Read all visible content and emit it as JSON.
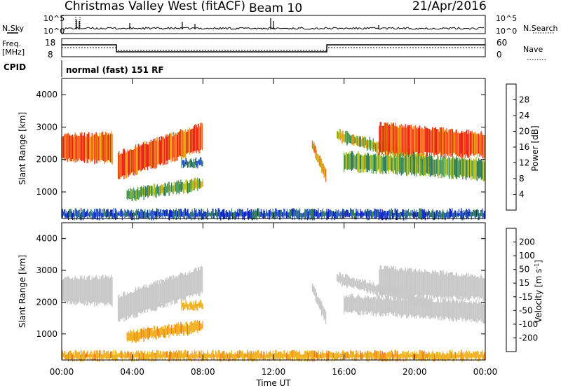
{
  "header": {
    "station": "Christmas Valley West (fitACF)",
    "beam": "Beam 10",
    "date": "21/Apr/2016"
  },
  "summary": {
    "nsky_label": "N.Sky",
    "nsearch_label": "N.Search",
    "count_ticks": [
      "10^5",
      "10^0"
    ],
    "freq_label": [
      "Freq.",
      "[MHz]"
    ],
    "freq_ticks": [
      "18",
      "8"
    ],
    "nave_label": "Nave",
    "nave_ticks": [
      "60",
      "0"
    ],
    "cpid_label": "CPID",
    "cpid_text": "normal (fast) 151 RF"
  },
  "colors": {
    "power": [
      "#0a1ec8",
      "#2454c8",
      "#2f7a5c",
      "#4ea050",
      "#b8c020",
      "#f0a010",
      "#f06418",
      "#ee2014"
    ],
    "velocity": [
      "#2046c0",
      "#2e6a52",
      "#46a046",
      "#8ad040",
      "#c8c8c8",
      "#f0b020",
      "#f07a10",
      "#ee4a10",
      "#e01010"
    ]
  },
  "chart_data": [
    {
      "type": "heatmap",
      "quantity": "Power",
      "ylabel": "Slant Range [km]",
      "xlabel": "Time UT",
      "x_ticks": [
        "00:00",
        "04:00",
        "08:00",
        "12:00",
        "16:00",
        "20:00",
        "00:00"
      ],
      "x_range_hours": [
        0,
        24
      ],
      "y_ticks": [
        1000,
        2000,
        3000,
        4000
      ],
      "y_range_km": [
        180,
        4500
      ],
      "colorbar": {
        "label": "Power [dB]",
        "ticks": [
          4,
          8,
          12,
          16,
          20,
          24,
          28
        ],
        "range": [
          0,
          32
        ]
      },
      "echo_regions": [
        {
          "t0": 0.0,
          "t1": 2.9,
          "r_top_start": 2750,
          "r_top_end": 2800,
          "r_bot_start": 2000,
          "r_bot_end": 1900,
          "value": 26
        },
        {
          "t0": 3.2,
          "t1": 8.0,
          "r_top_start": 2200,
          "r_top_end": 3100,
          "r_bot_start": 1400,
          "r_bot_end": 2300,
          "value": 27
        },
        {
          "t0": 3.7,
          "t1": 8.0,
          "r_top_start": 1050,
          "r_top_end": 1400,
          "r_bot_start": 750,
          "r_bot_end": 1100,
          "value": 15
        },
        {
          "t0": 6.8,
          "t1": 8.0,
          "r_top_start": 2000,
          "r_top_end": 2000,
          "r_bot_start": 1800,
          "r_bot_end": 1800,
          "value": 9
        },
        {
          "t0": 0.0,
          "t1": 24.0,
          "r_top_start": 420,
          "r_top_end": 420,
          "r_bot_start": 200,
          "r_bot_end": 200,
          "value": 6
        },
        {
          "t0": 14.2,
          "t1": 15.0,
          "r_top_start": 2600,
          "r_top_end": 1600,
          "r_bot_start": 2300,
          "r_bot_end": 1300,
          "value": 22
        },
        {
          "t0": 15.6,
          "t1": 21.0,
          "r_top_start": 2900,
          "r_top_end": 2100,
          "r_bot_start": 2600,
          "r_bot_end": 1800,
          "value": 17
        },
        {
          "t0": 16.0,
          "t1": 24.0,
          "r_top_start": 2200,
          "r_top_end": 2000,
          "r_bot_start": 1700,
          "r_bot_end": 1400,
          "value": 14
        },
        {
          "t0": 18.0,
          "t1": 24.0,
          "r_top_start": 3100,
          "r_top_end": 2800,
          "r_bot_start": 2200,
          "r_bot_end": 2100,
          "value": 27
        }
      ]
    },
    {
      "type": "heatmap",
      "quantity": "Velocity",
      "ylabel": "Slant Range [km]",
      "xlabel": "Time UT",
      "x_ticks": [
        "00:00",
        "04:00",
        "08:00",
        "12:00",
        "16:00",
        "20:00",
        "00:00"
      ],
      "x_range_hours": [
        0,
        24
      ],
      "y_ticks": [
        1000,
        2000,
        3000,
        4000
      ],
      "y_range_km": [
        180,
        4500
      ],
      "colorbar": {
        "label": "Velocity [m s^-1]",
        "ticks": [
          200,
          100,
          50,
          15,
          -15,
          -50,
          -100,
          -200
        ],
        "range": [
          -250,
          250
        ]
      },
      "echo_regions": [
        {
          "t0": 0.0,
          "t1": 2.9,
          "r_top_start": 2750,
          "r_top_end": 2800,
          "r_bot_start": 2000,
          "r_bot_end": 1900,
          "value": 0
        },
        {
          "t0": 3.2,
          "t1": 8.0,
          "r_top_start": 2200,
          "r_top_end": 3100,
          "r_bot_start": 1400,
          "r_bot_end": 2300,
          "value": 0
        },
        {
          "t0": 3.7,
          "t1": 8.0,
          "r_top_start": 1050,
          "r_top_end": 1400,
          "r_bot_start": 750,
          "r_bot_end": 1100,
          "value": -40
        },
        {
          "t0": 6.8,
          "t1": 8.0,
          "r_top_start": 2000,
          "r_top_end": 2000,
          "r_bot_start": 1800,
          "r_bot_end": 1800,
          "value": -30
        },
        {
          "t0": 0.0,
          "t1": 24.0,
          "r_top_start": 420,
          "r_top_end": 420,
          "r_bot_start": 200,
          "r_bot_end": 200,
          "value": -40
        },
        {
          "t0": 14.2,
          "t1": 15.0,
          "r_top_start": 2600,
          "r_top_end": 1600,
          "r_bot_start": 2300,
          "r_bot_end": 1300,
          "value": 0
        },
        {
          "t0": 15.6,
          "t1": 21.0,
          "r_top_start": 2900,
          "r_top_end": 2100,
          "r_bot_start": 2600,
          "r_bot_end": 1800,
          "value": 0
        },
        {
          "t0": 16.0,
          "t1": 24.0,
          "r_top_start": 2200,
          "r_top_end": 2000,
          "r_bot_start": 1700,
          "r_bot_end": 1400,
          "value": 0
        },
        {
          "t0": 18.0,
          "t1": 24.0,
          "r_top_start": 3100,
          "r_top_end": 2800,
          "r_bot_start": 2200,
          "r_bot_end": 2100,
          "value": 0
        }
      ]
    }
  ]
}
